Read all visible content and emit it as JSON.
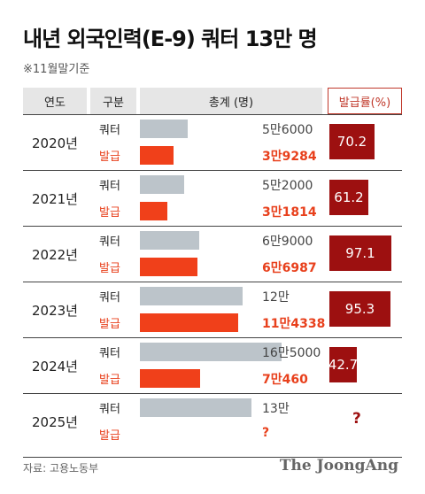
{
  "title": "내년 외국인력(E-9) 쿼터 13만 명",
  "subtitle": "※11월말기준",
  "source": "자료: 고용노동부",
  "brand": "The JoongAng",
  "headers": {
    "year": "연도",
    "category": "구분",
    "total": "총계 (명)",
    "rate": "발급률(%)"
  },
  "colors": {
    "quota_bar": "#bcc4ca",
    "issued_bar": "#f0401a",
    "rate_box": "#9d1010",
    "issued_text": "#e8401c"
  },
  "chart_data": {
    "type": "bar",
    "orientation": "horizontal",
    "categories": [
      "2020년",
      "2021년",
      "2022년",
      "2023년",
      "2024년",
      "2025년"
    ],
    "series": [
      {
        "name": "쿼터",
        "values": [
          56000,
          52000,
          69000,
          120000,
          165000,
          130000
        ],
        "labels": [
          "5만6000",
          "5만2000",
          "6만9000",
          "12만",
          "16만5000",
          "13만"
        ]
      },
      {
        "name": "발급",
        "values": [
          39284,
          31814,
          66987,
          114338,
          70460,
          null
        ],
        "labels": [
          "3만9284",
          "3만1814",
          "6만6987",
          "11만4338",
          "7만460",
          "?"
        ]
      }
    ],
    "rate": [
      70.2,
      61.2,
      97.1,
      95.3,
      42.7,
      null
    ],
    "rate_labels": [
      "70.2",
      "61.2",
      "97.1",
      "95.3",
      "42.7",
      "?"
    ]
  }
}
